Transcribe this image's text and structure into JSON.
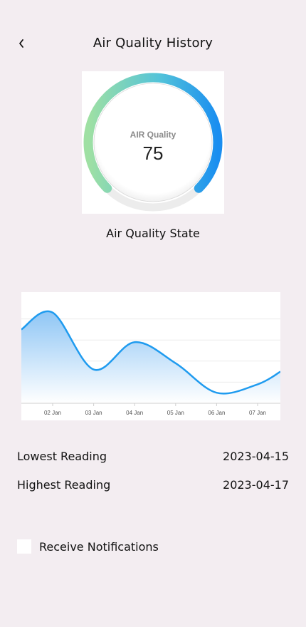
{
  "header": {
    "title": "Air Quality History",
    "back_icon": "chevron-left-icon"
  },
  "gauge": {
    "label": "AIR Quality",
    "value": "75",
    "state_label": "Air Quality State",
    "level_percent": 75
  },
  "chart_data": {
    "type": "area",
    "categories": [
      "02 Jan",
      "03 Jan",
      "04 Jan",
      "05 Jan",
      "06 Jan",
      "07 Jan"
    ],
    "series": [
      {
        "values": [
          4.3,
          1.6,
          2.9,
          1.9,
          0.5,
          0.9
        ]
      }
    ],
    "grid": true,
    "line_color": "#1f9bef",
    "fill_color": "#a8d2f7"
  },
  "readings": {
    "lowest_label": "Lowest Reading",
    "lowest_value": "2023-04-15",
    "highest_label": "Highest Reading",
    "highest_value": "2023-04-17"
  },
  "notifications": {
    "label": "Receive Notifications",
    "checked": false
  }
}
